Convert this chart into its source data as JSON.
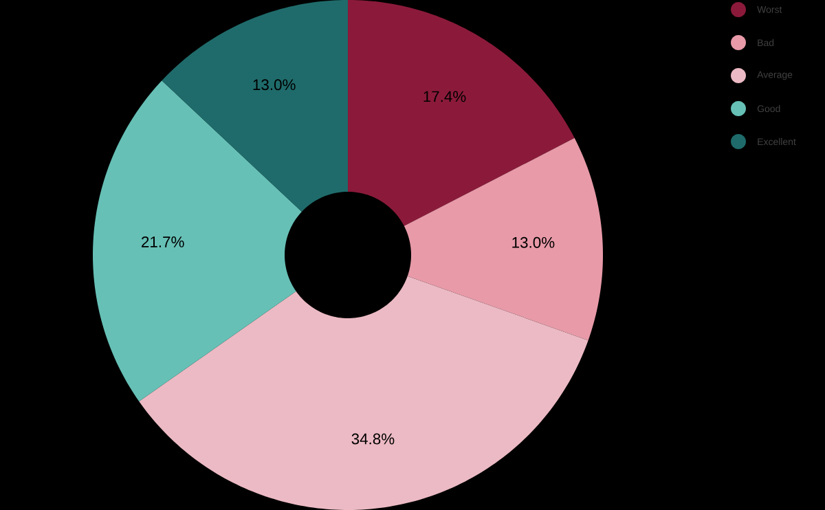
{
  "chart_data": {
    "type": "donut",
    "categories": [
      "Worst",
      "Bad",
      "Average",
      "Good",
      "Excellent"
    ],
    "values": [
      17.4,
      13.0,
      34.8,
      21.7,
      13.0
    ],
    "colors": [
      "#8b1a3a",
      "#e89aa8",
      "#ecbac4",
      "#66c0b6",
      "#1f6b6b"
    ],
    "value_labels": [
      "17.4%",
      "13.0%",
      "34.8%",
      "21.7%",
      "13.0%"
    ],
    "legend": "top right"
  }
}
